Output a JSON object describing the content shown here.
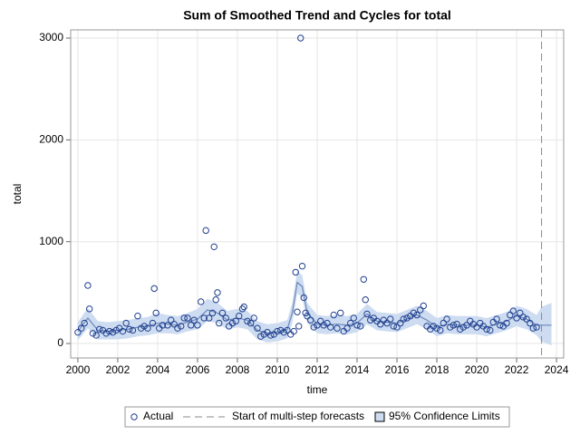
{
  "chart_data": {
    "type": "scatter",
    "title": "Sum of Smoothed Trend and Cycles for total",
    "x_label": "time",
    "y_label": "total",
    "xlim": [
      1999.64,
      2024.36
    ],
    "ylim": [
      -142,
      3080
    ],
    "xticks": [
      2000,
      2002,
      2004,
      2006,
      2008,
      2010,
      2012,
      2014,
      2016,
      2018,
      2020,
      2022,
      2024
    ],
    "yticks": [
      0,
      1000,
      2000,
      3000
    ],
    "grid": true,
    "series": [
      {
        "name": "Actual",
        "color": "#1f3f8f",
        "x": [
          2000,
          2000.17,
          2000.33,
          2000.5,
          2000.58,
          2000.75,
          2000.92,
          2001.08,
          2001.25,
          2001.42,
          2001.58,
          2001.75,
          2001.92,
          2002.08,
          2002.25,
          2002.42,
          2002.58,
          2002.75,
          2003,
          2003.17,
          2003.33,
          2003.5,
          2003.75,
          2003.83,
          2003.92,
          2004.08,
          2004.25,
          2004.5,
          2004.67,
          2004.83,
          2005,
          2005.17,
          2005.33,
          2005.5,
          2005.67,
          2005.83,
          2006,
          2006.17,
          2006.33,
          2006.42,
          2006.58,
          2006.75,
          2006.83,
          2006.92,
          2007,
          2007.08,
          2007.25,
          2007.42,
          2007.58,
          2007.75,
          2007.92,
          2008.08,
          2008.25,
          2008.33,
          2008.5,
          2008.67,
          2008.83,
          2009,
          2009.17,
          2009.33,
          2009.5,
          2009.67,
          2009.83,
          2010,
          2010.17,
          2010.33,
          2010.5,
          2010.67,
          2010.83,
          2010.92,
          2011,
          2011.08,
          2011.17,
          2011.25,
          2011.33,
          2011.42,
          2011.5,
          2011.67,
          2011.83,
          2012,
          2012.17,
          2012.33,
          2012.5,
          2012.67,
          2012.83,
          2013,
          2013.17,
          2013.33,
          2013.5,
          2013.67,
          2013.83,
          2014,
          2014.17,
          2014.33,
          2014.42,
          2014.5,
          2014.67,
          2014.83,
          2015,
          2015.17,
          2015.33,
          2015.5,
          2015.67,
          2015.83,
          2016,
          2016.17,
          2016.33,
          2016.5,
          2016.67,
          2016.83,
          2017,
          2017.17,
          2017.33,
          2017.5,
          2017.67,
          2017.83,
          2018,
          2018.17,
          2018.33,
          2018.5,
          2018.67,
          2018.83,
          2019,
          2019.17,
          2019.33,
          2019.5,
          2019.67,
          2019.83,
          2020,
          2020.17,
          2020.33,
          2020.5,
          2020.67,
          2020.83,
          2021,
          2021.17,
          2021.33,
          2021.5,
          2021.67,
          2021.83,
          2022,
          2022.17,
          2022.33,
          2022.5,
          2022.67,
          2022.83,
          2023
        ],
        "values": [
          110,
          150,
          200,
          570,
          340,
          100,
          80,
          140,
          130,
          100,
          120,
          110,
          130,
          150,
          120,
          200,
          140,
          130,
          270,
          150,
          170,
          150,
          200,
          540,
          300,
          150,
          180,
          180,
          230,
          190,
          150,
          170,
          250,
          250,
          180,
          230,
          180,
          410,
          250,
          1110,
          250,
          300,
          950,
          430,
          500,
          200,
          300,
          250,
          170,
          200,
          220,
          270,
          340,
          360,
          220,
          200,
          250,
          150,
          70,
          90,
          110,
          80,
          90,
          120,
          130,
          110,
          130,
          90,
          120,
          700,
          310,
          170,
          3000,
          760,
          450,
          300,
          270,
          230,
          160,
          180,
          220,
          180,
          200,
          160,
          280,
          150,
          300,
          120,
          150,
          200,
          250,
          180,
          170,
          630,
          430,
          290,
          230,
          250,
          220,
          190,
          230,
          200,
          240,
          170,
          160,
          200,
          240,
          250,
          270,
          300,
          280,
          330,
          370,
          170,
          140,
          170,
          150,
          130,
          200,
          240,
          160,
          180,
          190,
          140,
          160,
          180,
          220,
          190,
          160,
          200,
          170,
          140,
          130,
          210,
          240,
          180,
          170,
          200,
          280,
          320,
          250,
          300,
          260,
          240,
          200,
          150,
          160
        ]
      }
    ],
    "trend": {
      "color": "#6b86b8",
      "band_name": "95% Confidence Limits",
      "band_color": "#cddcf1",
      "x": [
        2000,
        2000.5,
        2001,
        2001.5,
        2002,
        2002.5,
        2003,
        2003.5,
        2004,
        2004.5,
        2005,
        2005.5,
        2006,
        2006.5,
        2007,
        2007.5,
        2008,
        2008.5,
        2009,
        2009.5,
        2010,
        2010.5,
        2010.75,
        2011,
        2011.25,
        2011.5,
        2012,
        2012.5,
        2013,
        2013.5,
        2014,
        2014.5,
        2015,
        2015.5,
        2016,
        2016.5,
        2017,
        2017.5,
        2018,
        2018.5,
        2019,
        2019.5,
        2020,
        2020.5,
        2021,
        2021.5,
        2022,
        2022.5,
        2023,
        2023.25,
        2023.75
      ],
      "values": [
        120,
        250,
        130,
        120,
        130,
        140,
        160,
        170,
        200,
        190,
        180,
        210,
        240,
        330,
        300,
        230,
        250,
        230,
        130,
        100,
        110,
        140,
        300,
        600,
        560,
        300,
        190,
        180,
        190,
        180,
        200,
        290,
        220,
        210,
        200,
        240,
        280,
        230,
        160,
        190,
        180,
        180,
        180,
        160,
        190,
        220,
        270,
        240,
        180,
        180,
        180
      ],
      "lower": [
        30,
        150,
        40,
        40,
        40,
        50,
        70,
        80,
        100,
        100,
        90,
        120,
        140,
        220,
        200,
        140,
        160,
        140,
        40,
        10,
        20,
        50,
        200,
        490,
        450,
        200,
        100,
        90,
        100,
        90,
        110,
        190,
        130,
        120,
        110,
        150,
        190,
        140,
        70,
        100,
        90,
        90,
        90,
        70,
        100,
        130,
        170,
        140,
        80,
        20,
        -20
      ],
      "upper": [
        210,
        350,
        220,
        210,
        220,
        230,
        250,
        260,
        300,
        280,
        270,
        300,
        340,
        440,
        400,
        320,
        340,
        320,
        220,
        190,
        200,
        230,
        400,
        710,
        670,
        400,
        280,
        270,
        280,
        270,
        290,
        390,
        310,
        300,
        290,
        330,
        370,
        320,
        250,
        280,
        270,
        270,
        270,
        250,
        280,
        310,
        370,
        340,
        280,
        360,
        400
      ]
    },
    "forecast_start": {
      "name": "Start of multi-step forecasts",
      "value": 2023.25,
      "color": "#888888"
    }
  }
}
